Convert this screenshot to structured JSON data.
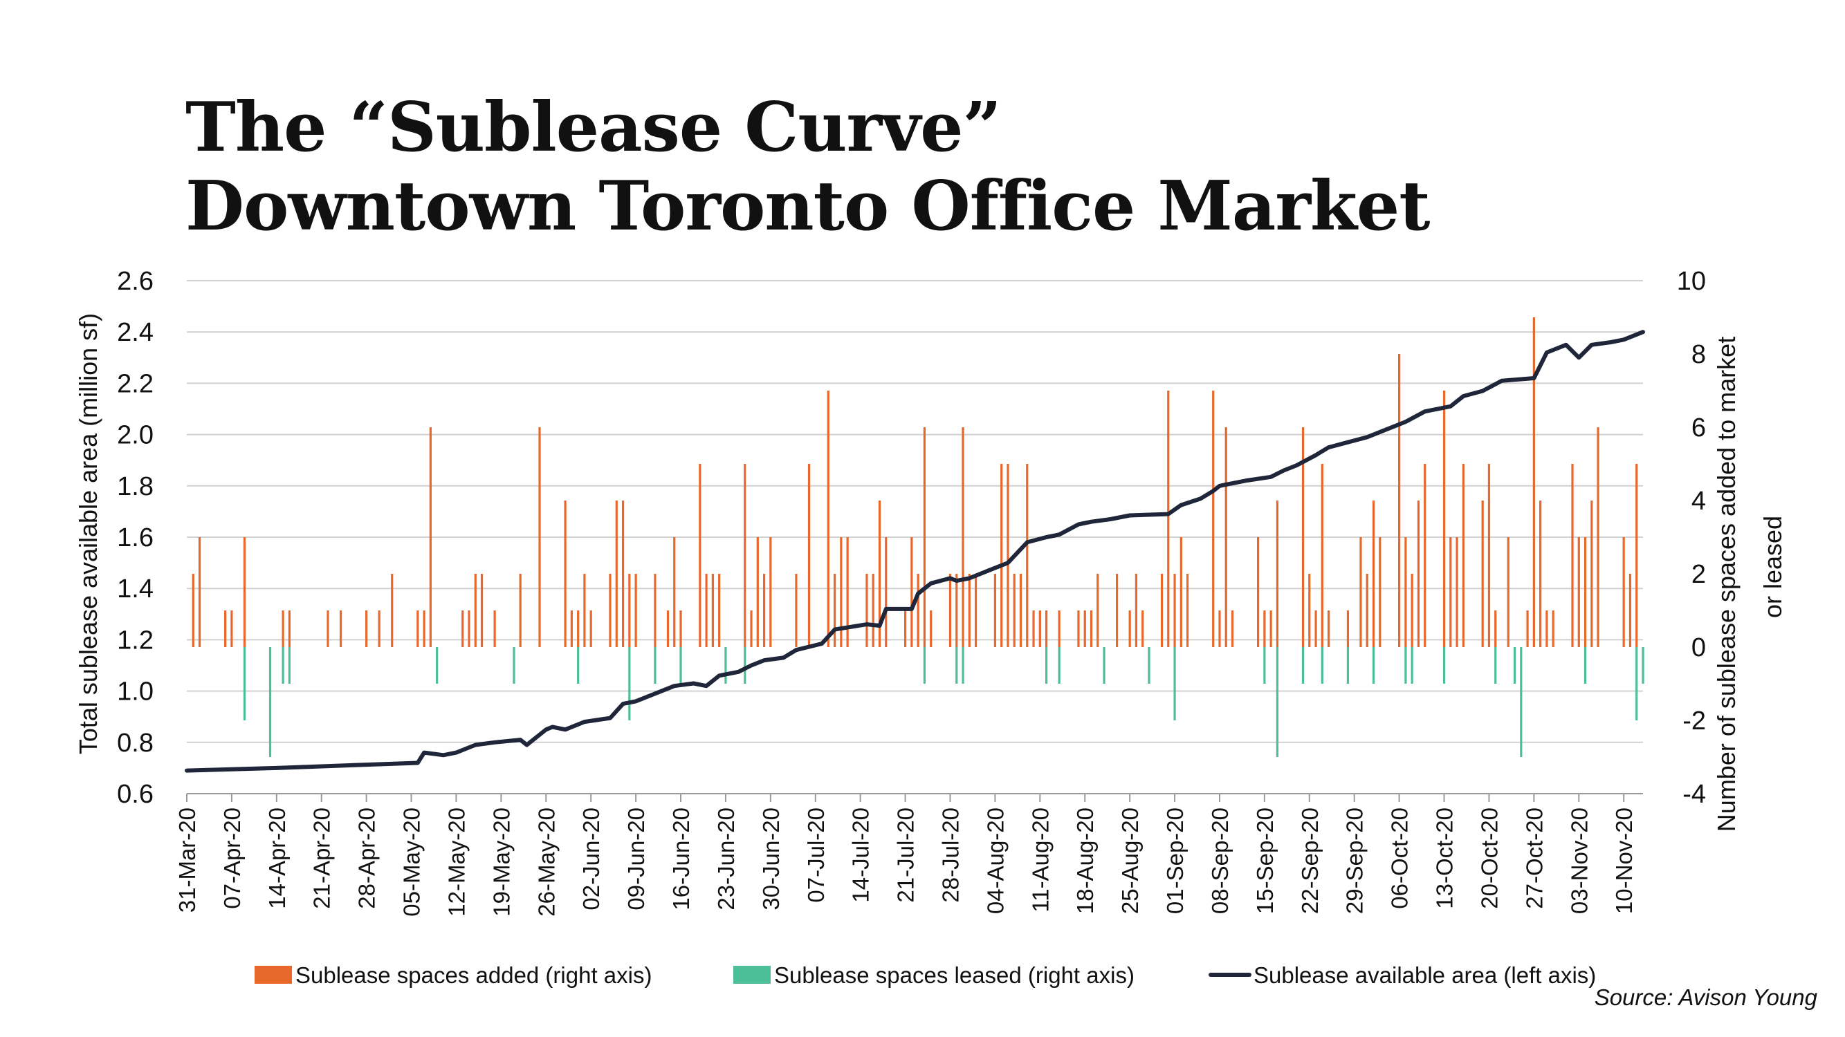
{
  "title": {
    "line1": "The “Sublease Curve”",
    "line2": "Downtown Toronto Office Market"
  },
  "source": "Source: Avison Young",
  "colors": {
    "added": "#E8672B",
    "leased": "#4DBF98",
    "area": "#1F2639",
    "grid": "#D0D0D0"
  },
  "chart_data": {
    "type": "bar+line",
    "left_axis": {
      "label": "Total sublease available area (million sf)",
      "ylim": [
        0.6,
        2.6
      ],
      "ticks": [
        "0.6",
        "0.8",
        "1.0",
        "1.2",
        "1.4",
        "1.6",
        "1.8",
        "2.0",
        "2.2",
        "2.4",
        "2.6"
      ]
    },
    "right_axis": {
      "label_line1": "Number of sublease spaces added to market",
      "label_line2": "or leased",
      "ylim": [
        -4,
        10
      ],
      "ticks": [
        "-4",
        "-2",
        "0",
        "2",
        "4",
        "6",
        "8",
        "10"
      ]
    },
    "x_axis": {
      "start": "2020-03-31",
      "end": "2020-11-13",
      "ticks": [
        "31-Mar-20",
        "07-Apr-20",
        "14-Apr-20",
        "21-Apr-20",
        "28-Apr-20",
        "05-May-20",
        "12-May-20",
        "19-May-20",
        "26-May-20",
        "02-Jun-20",
        "09-Jun-20",
        "16-Jun-20",
        "23-Jun-20",
        "30-Jun-20",
        "07-Jul-20",
        "14-Jul-20",
        "21-Jul-20",
        "28-Jul-20",
        "04-Aug-20",
        "11-Aug-20",
        "18-Aug-20",
        "25-Aug-20",
        "01-Sep-20",
        "08-Sep-20",
        "15-Sep-20",
        "22-Sep-20",
        "29-Sep-20",
        "06-Oct-20",
        "13-Oct-20",
        "20-Oct-20",
        "27-Oct-20",
        "03-Nov-20",
        "10-Nov-20"
      ]
    },
    "legend": {
      "position": "bottom",
      "items": [
        "Sublease spaces added (right axis)",
        "Sublease spaces leased (right axis)",
        "Sublease available area (left axis)"
      ]
    },
    "series": [
      {
        "name": "Sublease spaces added (right axis)",
        "type": "bar",
        "axis": "right",
        "points": [
          [
            "2020-04-01",
            2
          ],
          [
            "2020-04-02",
            3
          ],
          [
            "2020-04-06",
            1
          ],
          [
            "2020-04-07",
            1
          ],
          [
            "2020-04-09",
            3
          ],
          [
            "2020-04-15",
            1
          ],
          [
            "2020-04-16",
            1
          ],
          [
            "2020-04-22",
            1
          ],
          [
            "2020-04-24",
            1
          ],
          [
            "2020-04-28",
            1
          ],
          [
            "2020-04-30",
            1
          ],
          [
            "2020-05-02",
            2
          ],
          [
            "2020-05-06",
            1
          ],
          [
            "2020-05-07",
            1
          ],
          [
            "2020-05-08",
            6
          ],
          [
            "2020-05-13",
            1
          ],
          [
            "2020-05-14",
            1
          ],
          [
            "2020-05-15",
            2
          ],
          [
            "2020-05-16",
            2
          ],
          [
            "2020-05-18",
            1
          ],
          [
            "2020-05-22",
            2
          ],
          [
            "2020-05-25",
            6
          ],
          [
            "2020-05-29",
            4
          ],
          [
            "2020-05-30",
            1
          ],
          [
            "2020-05-31",
            1
          ],
          [
            "2020-06-01",
            2
          ],
          [
            "2020-06-02",
            1
          ],
          [
            "2020-06-05",
            2
          ],
          [
            "2020-06-06",
            4
          ],
          [
            "2020-06-07",
            4
          ],
          [
            "2020-06-08",
            2
          ],
          [
            "2020-06-09",
            2
          ],
          [
            "2020-06-12",
            2
          ],
          [
            "2020-06-14",
            1
          ],
          [
            "2020-06-15",
            3
          ],
          [
            "2020-06-16",
            1
          ],
          [
            "2020-06-19",
            5
          ],
          [
            "2020-06-20",
            2
          ],
          [
            "2020-06-21",
            2
          ],
          [
            "2020-06-22",
            2
          ],
          [
            "2020-06-26",
            5
          ],
          [
            "2020-06-27",
            1
          ],
          [
            "2020-06-28",
            3
          ],
          [
            "2020-06-29",
            2
          ],
          [
            "2020-06-30",
            3
          ],
          [
            "2020-07-04",
            2
          ],
          [
            "2020-07-06",
            5
          ],
          [
            "2020-07-09",
            7
          ],
          [
            "2020-07-10",
            2
          ],
          [
            "2020-07-11",
            3
          ],
          [
            "2020-07-12",
            3
          ],
          [
            "2020-07-15",
            2
          ],
          [
            "2020-07-16",
            2
          ],
          [
            "2020-07-17",
            4
          ],
          [
            "2020-07-18",
            3
          ],
          [
            "2020-07-21",
            1
          ],
          [
            "2020-07-22",
            3
          ],
          [
            "2020-07-23",
            2
          ],
          [
            "2020-07-24",
            6
          ],
          [
            "2020-07-25",
            1
          ],
          [
            "2020-07-28",
            2
          ],
          [
            "2020-07-29",
            2
          ],
          [
            "2020-07-30",
            6
          ],
          [
            "2020-07-31",
            2
          ],
          [
            "2020-08-01",
            2
          ],
          [
            "2020-08-04",
            2
          ],
          [
            "2020-08-05",
            5
          ],
          [
            "2020-08-06",
            5
          ],
          [
            "2020-08-07",
            2
          ],
          [
            "2020-08-08",
            2
          ],
          [
            "2020-08-09",
            5
          ],
          [
            "2020-08-10",
            1
          ],
          [
            "2020-08-11",
            1
          ],
          [
            "2020-08-12",
            1
          ],
          [
            "2020-08-14",
            1
          ],
          [
            "2020-08-17",
            1
          ],
          [
            "2020-08-18",
            1
          ],
          [
            "2020-08-19",
            1
          ],
          [
            "2020-08-20",
            2
          ],
          [
            "2020-08-23",
            2
          ],
          [
            "2020-08-25",
            1
          ],
          [
            "2020-08-26",
            2
          ],
          [
            "2020-08-27",
            1
          ],
          [
            "2020-08-30",
            2
          ],
          [
            "2020-08-31",
            7
          ],
          [
            "2020-09-01",
            2
          ],
          [
            "2020-09-02",
            3
          ],
          [
            "2020-09-03",
            2
          ],
          [
            "2020-09-07",
            7
          ],
          [
            "2020-09-08",
            1
          ],
          [
            "2020-09-09",
            6
          ],
          [
            "2020-09-10",
            1
          ],
          [
            "2020-09-14",
            3
          ],
          [
            "2020-09-15",
            1
          ],
          [
            "2020-09-16",
            1
          ],
          [
            "2020-09-17",
            4
          ],
          [
            "2020-09-21",
            6
          ],
          [
            "2020-09-22",
            2
          ],
          [
            "2020-09-23",
            1
          ],
          [
            "2020-09-24",
            5
          ],
          [
            "2020-09-25",
            1
          ],
          [
            "2020-09-28",
            1
          ],
          [
            "2020-09-30",
            3
          ],
          [
            "2020-10-01",
            2
          ],
          [
            "2020-10-02",
            4
          ],
          [
            "2020-10-03",
            3
          ],
          [
            "2020-10-06",
            8
          ],
          [
            "2020-10-07",
            3
          ],
          [
            "2020-10-08",
            2
          ],
          [
            "2020-10-09",
            4
          ],
          [
            "2020-10-10",
            5
          ],
          [
            "2020-10-13",
            7
          ],
          [
            "2020-10-14",
            3
          ],
          [
            "2020-10-15",
            3
          ],
          [
            "2020-10-16",
            5
          ],
          [
            "2020-10-19",
            4
          ],
          [
            "2020-10-20",
            5
          ],
          [
            "2020-10-21",
            1
          ],
          [
            "2020-10-23",
            3
          ],
          [
            "2020-10-26",
            1
          ],
          [
            "2020-10-27",
            9
          ],
          [
            "2020-10-28",
            4
          ],
          [
            "2020-10-29",
            1
          ],
          [
            "2020-10-30",
            1
          ],
          [
            "2020-11-02",
            5
          ],
          [
            "2020-11-03",
            3
          ],
          [
            "2020-11-04",
            3
          ],
          [
            "2020-11-05",
            4
          ],
          [
            "2020-11-06",
            6
          ],
          [
            "2020-11-10",
            3
          ],
          [
            "2020-11-11",
            2
          ],
          [
            "2020-11-12",
            5
          ]
        ]
      },
      {
        "name": "Sublease spaces leased (right axis)",
        "type": "bar",
        "axis": "right",
        "points": [
          [
            "2020-04-09",
            -2
          ],
          [
            "2020-04-13",
            -3
          ],
          [
            "2020-04-15",
            -1
          ],
          [
            "2020-04-16",
            -1
          ],
          [
            "2020-05-09",
            -1
          ],
          [
            "2020-05-21",
            -1
          ],
          [
            "2020-05-31",
            -1
          ],
          [
            "2020-06-08",
            -2
          ],
          [
            "2020-06-12",
            -1
          ],
          [
            "2020-06-16",
            -1
          ],
          [
            "2020-06-23",
            -1
          ],
          [
            "2020-06-26",
            -1
          ],
          [
            "2020-07-24",
            -1
          ],
          [
            "2020-07-29",
            -1
          ],
          [
            "2020-07-30",
            -1
          ],
          [
            "2020-08-12",
            -1
          ],
          [
            "2020-08-14",
            -1
          ],
          [
            "2020-08-21",
            -1
          ],
          [
            "2020-08-28",
            -1
          ],
          [
            "2020-09-01",
            -2
          ],
          [
            "2020-09-15",
            -1
          ],
          [
            "2020-09-17",
            -3
          ],
          [
            "2020-09-21",
            -1
          ],
          [
            "2020-09-24",
            -1
          ],
          [
            "2020-09-28",
            -1
          ],
          [
            "2020-10-02",
            -1
          ],
          [
            "2020-10-07",
            -1
          ],
          [
            "2020-10-08",
            -1
          ],
          [
            "2020-10-13",
            -1
          ],
          [
            "2020-10-21",
            -1
          ],
          [
            "2020-10-24",
            -1
          ],
          [
            "2020-10-25",
            -3
          ],
          [
            "2020-11-04",
            -1
          ],
          [
            "2020-11-12",
            -2
          ],
          [
            "2020-11-13",
            -1
          ]
        ]
      },
      {
        "name": "Sublease available area (left axis)",
        "type": "line",
        "axis": "left",
        "points": [
          [
            "2020-03-31",
            0.69
          ],
          [
            "2020-04-14",
            0.7
          ],
          [
            "2020-04-28",
            0.713
          ],
          [
            "2020-05-06",
            0.72
          ],
          [
            "2020-05-07",
            0.76
          ],
          [
            "2020-05-10",
            0.75
          ],
          [
            "2020-05-12",
            0.76
          ],
          [
            "2020-05-15",
            0.79
          ],
          [
            "2020-05-18",
            0.8
          ],
          [
            "2020-05-22",
            0.81
          ],
          [
            "2020-05-23",
            0.79
          ],
          [
            "2020-05-26",
            0.85
          ],
          [
            "2020-05-27",
            0.86
          ],
          [
            "2020-05-29",
            0.85
          ],
          [
            "2020-06-01",
            0.88
          ],
          [
            "2020-06-05",
            0.895
          ],
          [
            "2020-06-07",
            0.95
          ],
          [
            "2020-06-09",
            0.96
          ],
          [
            "2020-06-12",
            0.99
          ],
          [
            "2020-06-15",
            1.02
          ],
          [
            "2020-06-18",
            1.03
          ],
          [
            "2020-06-20",
            1.02
          ],
          [
            "2020-06-22",
            1.06
          ],
          [
            "2020-06-25",
            1.075
          ],
          [
            "2020-06-27",
            1.1
          ],
          [
            "2020-06-29",
            1.12
          ],
          [
            "2020-07-02",
            1.13
          ],
          [
            "2020-07-04",
            1.16
          ],
          [
            "2020-07-08",
            1.185
          ],
          [
            "2020-07-10",
            1.24
          ],
          [
            "2020-07-15",
            1.26
          ],
          [
            "2020-07-17",
            1.255
          ],
          [
            "2020-07-18",
            1.32
          ],
          [
            "2020-07-22",
            1.32
          ],
          [
            "2020-07-23",
            1.38
          ],
          [
            "2020-07-25",
            1.42
          ],
          [
            "2020-07-28",
            1.44
          ],
          [
            "2020-07-29",
            1.43
          ],
          [
            "2020-07-31",
            1.44
          ],
          [
            "2020-08-03",
            1.47
          ],
          [
            "2020-08-06",
            1.5
          ],
          [
            "2020-08-09",
            1.58
          ],
          [
            "2020-08-12",
            1.6
          ],
          [
            "2020-08-14",
            1.61
          ],
          [
            "2020-08-17",
            1.65
          ],
          [
            "2020-08-19",
            1.66
          ],
          [
            "2020-08-22",
            1.67
          ],
          [
            "2020-08-25",
            1.685
          ],
          [
            "2020-08-31",
            1.69
          ],
          [
            "2020-09-02",
            1.725
          ],
          [
            "2020-09-05",
            1.75
          ],
          [
            "2020-09-07",
            1.78
          ],
          [
            "2020-09-08",
            1.8
          ],
          [
            "2020-09-12",
            1.82
          ],
          [
            "2020-09-16",
            1.835
          ],
          [
            "2020-09-18",
            1.86
          ],
          [
            "2020-09-20",
            1.88
          ],
          [
            "2020-09-23",
            1.92
          ],
          [
            "2020-09-25",
            1.95
          ],
          [
            "2020-09-28",
            1.97
          ],
          [
            "2020-10-01",
            1.99
          ],
          [
            "2020-10-04",
            2.02
          ],
          [
            "2020-10-07",
            2.05
          ],
          [
            "2020-10-10",
            2.09
          ],
          [
            "2020-10-14",
            2.11
          ],
          [
            "2020-10-16",
            2.15
          ],
          [
            "2020-10-19",
            2.17
          ],
          [
            "2020-10-22",
            2.21
          ],
          [
            "2020-10-27",
            2.22
          ],
          [
            "2020-10-29",
            2.32
          ],
          [
            "2020-11-01",
            2.35
          ],
          [
            "2020-11-03",
            2.3
          ],
          [
            "2020-11-05",
            2.35
          ],
          [
            "2020-11-08",
            2.36
          ],
          [
            "2020-11-10",
            2.37
          ],
          [
            "2020-11-13",
            2.4
          ]
        ]
      }
    ]
  }
}
